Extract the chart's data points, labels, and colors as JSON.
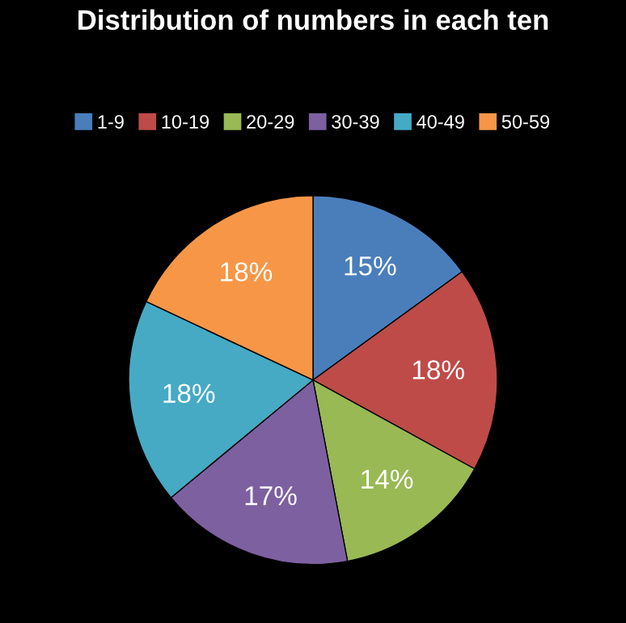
{
  "chart_data": {
    "type": "pie",
    "title": "Distribution of numbers in each ten",
    "categories": [
      "1-9",
      "10-19",
      "20-29",
      "30-39",
      "40-49",
      "50-59"
    ],
    "values": [
      15,
      18,
      14,
      17,
      18,
      18
    ],
    "value_labels": [
      "15%",
      "18%",
      "14%",
      "17%",
      "18%",
      "18%"
    ],
    "colors": [
      "#4a7ebb",
      "#be4b48",
      "#98b954",
      "#7d60a0",
      "#46aac5",
      "#f79646"
    ],
    "legend": "top"
  }
}
